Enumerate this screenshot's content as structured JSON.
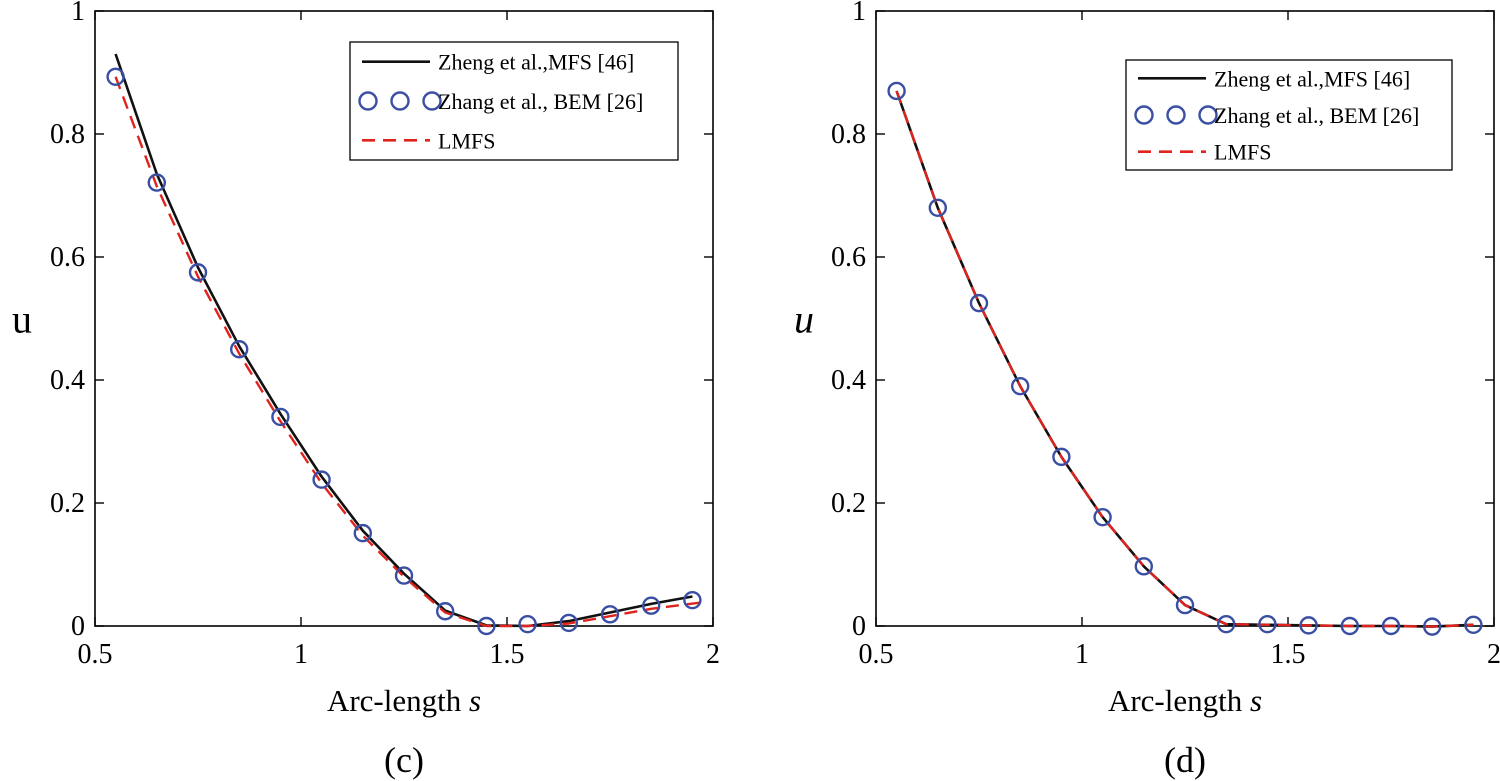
{
  "chart_data": [
    {
      "type": "line",
      "panel_label": "(c)",
      "xlabel_text": "Arc-length ",
      "xlabel_var": "s",
      "ylabel": "u",
      "ylabel_italic": false,
      "xlim": [
        0.5,
        2
      ],
      "ylim": [
        0,
        1
      ],
      "xticks": [
        0.5,
        1,
        1.5,
        2
      ],
      "xtick_labels": [
        "0.5",
        "1",
        "1.5",
        "2"
      ],
      "yticks": [
        0,
        0.2,
        0.4,
        0.6,
        0.8,
        1
      ],
      "ytick_labels": [
        "0",
        "0.2",
        "0.4",
        "0.6",
        "0.8",
        "1"
      ],
      "legend": {
        "placement": "top-right",
        "entries": [
          "Zheng et al.,MFS [46]",
          "Zhang et al., BEM [26]",
          "LMFS"
        ]
      },
      "series": [
        {
          "name": "Zheng et al.,MFS [46]",
          "style": "solid",
          "color": "#111111",
          "x": [
            0.55,
            0.65,
            0.75,
            0.85,
            0.95,
            1.05,
            1.15,
            1.25,
            1.35,
            1.45,
            1.55,
            1.65,
            1.75,
            1.85,
            1.95
          ],
          "y": [
            0.93,
            0.735,
            0.583,
            0.455,
            0.345,
            0.243,
            0.155,
            0.085,
            0.025,
            0.001,
            0.0,
            0.008,
            0.022,
            0.036,
            0.048
          ]
        },
        {
          "name": "Zhang et al., BEM [26]",
          "style": "circles",
          "color": "#3a4fa3",
          "x": [
            0.55,
            0.65,
            0.75,
            0.85,
            0.95,
            1.05,
            1.15,
            1.25,
            1.35,
            1.45,
            1.55,
            1.65,
            1.75,
            1.85,
            1.95
          ],
          "y": [
            0.893,
            0.721,
            0.575,
            0.45,
            0.34,
            0.238,
            0.151,
            0.082,
            0.024,
            0.0,
            0.003,
            0.005,
            0.019,
            0.033,
            0.042
          ]
        },
        {
          "name": "LMFS",
          "style": "dashed",
          "color": "#e0231c",
          "x": [
            0.55,
            0.65,
            0.75,
            0.85,
            0.95,
            1.05,
            1.15,
            1.25,
            1.35,
            1.45,
            1.55,
            1.65,
            1.75,
            1.85,
            1.97
          ],
          "y": [
            0.893,
            0.715,
            0.568,
            0.443,
            0.333,
            0.232,
            0.147,
            0.08,
            0.022,
            0.0,
            0.0,
            0.004,
            0.016,
            0.028,
            0.038
          ]
        }
      ]
    },
    {
      "type": "line",
      "panel_label": "(d)",
      "xlabel_text": "Arc-length ",
      "xlabel_var": "s",
      "ylabel": "u",
      "ylabel_italic": true,
      "xlim": [
        0.5,
        2
      ],
      "ylim": [
        0,
        1
      ],
      "xticks": [
        0.5,
        1,
        1.5,
        2
      ],
      "xtick_labels": [
        "0.5",
        "1",
        "1.5",
        "2"
      ],
      "yticks": [
        0,
        0.2,
        0.4,
        0.6,
        0.8,
        1
      ],
      "ytick_labels": [
        "0",
        "0.2",
        "0.4",
        "0.6",
        "0.8",
        "1"
      ],
      "legend": {
        "placement": "top-right",
        "entries": [
          "Zheng et al.,MFS [46]",
          "Zhang et al., BEM [26]",
          "LMFS"
        ]
      },
      "series": [
        {
          "name": "Zheng et al.,MFS [46]",
          "style": "solid",
          "color": "#111111",
          "x": [
            0.55,
            0.65,
            0.75,
            0.85,
            0.95,
            1.05,
            1.15,
            1.25,
            1.35,
            1.45,
            1.55,
            1.65,
            1.75,
            1.85,
            1.95
          ],
          "y": [
            0.87,
            0.68,
            0.525,
            0.39,
            0.275,
            0.177,
            0.097,
            0.034,
            0.003,
            0.002,
            0.001,
            0.0,
            0.0,
            -0.001,
            0.002
          ]
        },
        {
          "name": "Zhang et al., BEM [26]",
          "style": "circles",
          "color": "#3a4fa3",
          "x": [
            0.55,
            0.65,
            0.75,
            0.85,
            0.95,
            1.05,
            1.15,
            1.25,
            1.35,
            1.45,
            1.55,
            1.65,
            1.75,
            1.85,
            1.95
          ],
          "y": [
            0.87,
            0.68,
            0.525,
            0.39,
            0.275,
            0.177,
            0.097,
            0.034,
            0.003,
            0.003,
            0.001,
            0.0,
            0.0,
            -0.001,
            0.002
          ]
        },
        {
          "name": "LMFS",
          "style": "dashed",
          "color": "#e0231c",
          "x": [
            0.55,
            0.65,
            0.75,
            0.85,
            0.95,
            1.05,
            1.15,
            1.25,
            1.35,
            1.45,
            1.55,
            1.65,
            1.75,
            1.85,
            1.95
          ],
          "y": [
            0.87,
            0.68,
            0.525,
            0.39,
            0.275,
            0.177,
            0.097,
            0.034,
            0.003,
            0.002,
            0.001,
            0.0,
            0.0,
            -0.001,
            0.002
          ]
        }
      ]
    }
  ]
}
